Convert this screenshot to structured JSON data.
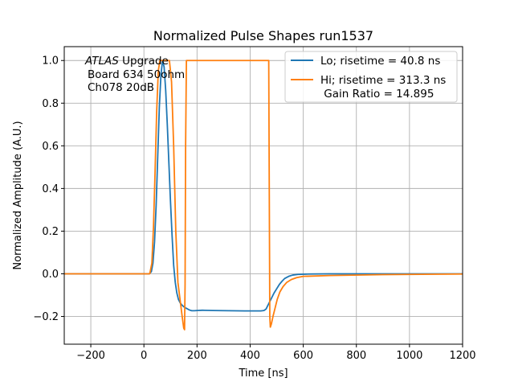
{
  "chart_data": {
    "type": "line",
    "title": "Normalized Pulse Shapes run1537",
    "xlabel": "Time [ns]",
    "ylabel": "Normalized Amplitude (A.U.)",
    "xlim": [
      -300,
      1200
    ],
    "ylim": [
      -0.33,
      1.065
    ],
    "xticks": [
      -200,
      0,
      200,
      400,
      600,
      800,
      1000,
      1200
    ],
    "xtick_labels": [
      "−200",
      "0",
      "200",
      "400",
      "600",
      "800",
      "1000",
      "1200"
    ],
    "yticks": [
      -0.2,
      0.0,
      0.2,
      0.4,
      0.6,
      0.8,
      1.0
    ],
    "ytick_labels": [
      "−0.2",
      "0.0",
      "0.2",
      "0.4",
      "0.6",
      "0.8",
      "1.0"
    ],
    "grid": true,
    "legend_position": "upper-right",
    "annotation": {
      "italic_word": "ATLAS",
      "rest_line1": " Upgrade",
      "line2": "Board 634 50ohm",
      "line3": "Ch078 20dB"
    },
    "series": [
      {
        "name": "Lo; risetime = 40.8 ns",
        "color": "#1f77b4",
        "x": [
          -300,
          20,
          28,
          34,
          40,
          46,
          52,
          58,
          64,
          70,
          76,
          82,
          88,
          94,
          100,
          106,
          112,
          118,
          124,
          130,
          136,
          142,
          148,
          154,
          160,
          166,
          172,
          180,
          190,
          200,
          220,
          260,
          320,
          380,
          440,
          452,
          460,
          470,
          480,
          490,
          500,
          510,
          520,
          530,
          545,
          560,
          580,
          620,
          700,
          900,
          1200
        ],
        "y": [
          0.0,
          0.0,
          0.01,
          0.05,
          0.15,
          0.32,
          0.55,
          0.78,
          0.93,
          1.0,
          0.97,
          0.86,
          0.7,
          0.52,
          0.34,
          0.18,
          0.04,
          -0.04,
          -0.09,
          -0.12,
          -0.135,
          -0.145,
          -0.152,
          -0.158,
          -0.162,
          -0.166,
          -0.17,
          -0.173,
          -0.173,
          -0.172,
          -0.171,
          -0.172,
          -0.173,
          -0.174,
          -0.174,
          -0.172,
          -0.165,
          -0.14,
          -0.115,
          -0.09,
          -0.07,
          -0.05,
          -0.035,
          -0.022,
          -0.012,
          -0.006,
          -0.003,
          -0.001,
          0.0,
          0.0,
          0.0
        ]
      },
      {
        "name": "Hi; risetime = 313.3 ns",
        "name_line2": " Gain Ratio = 14.895",
        "color": "#ff7f0e",
        "x": [
          -300,
          22,
          30,
          36,
          42,
          48,
          54,
          60,
          96,
          104,
          112,
          120,
          128,
          136,
          144,
          150,
          153,
          155,
          157,
          160,
          164,
          470,
          472,
          474,
          476,
          480,
          486,
          494,
          502,
          512,
          524,
          538,
          555,
          575,
          600,
          700,
          900,
          1200
        ],
        "y": [
          0.0,
          0.0,
          0.05,
          0.22,
          0.48,
          0.76,
          0.95,
          1.0,
          1.0,
          0.9,
          0.6,
          0.2,
          -0.04,
          -0.12,
          -0.2,
          -0.255,
          -0.262,
          -0.05,
          0.6,
          1.0,
          1.0,
          1.0,
          0.4,
          -0.2,
          -0.25,
          -0.235,
          -0.2,
          -0.16,
          -0.12,
          -0.085,
          -0.06,
          -0.04,
          -0.027,
          -0.018,
          -0.012,
          -0.008,
          -0.004,
          -0.001
        ]
      }
    ]
  }
}
